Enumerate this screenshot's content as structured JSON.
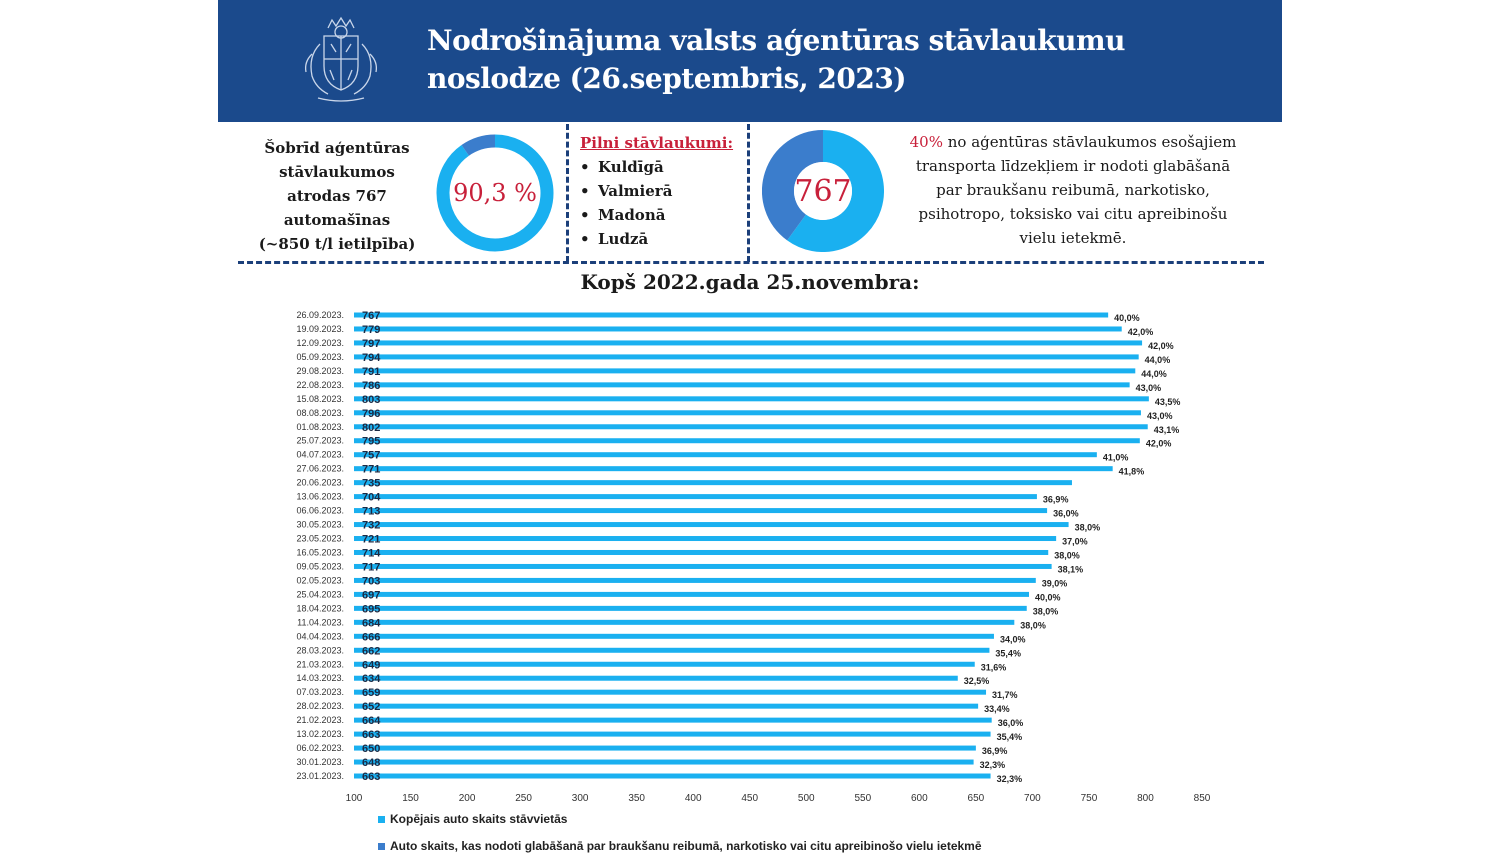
{
  "header": {
    "title_line1": "Nodrošinājuma valsts aģentūras stāvlaukumu",
    "title_line2": "noslodze (26.septembris, 2023)"
  },
  "colors": {
    "header_bg": "#1b4a8c",
    "accent_red": "#c8203a",
    "bar_light": "#1ab0f0",
    "bar_dark": "#3b7dcc"
  },
  "summary": {
    "lines": [
      "Šobrīd aģentūras",
      "stāvlaukumos",
      "atrodas 767",
      "automašīnas",
      "(~850 t/l ietilpība)"
    ],
    "occupancy_label": "90,3 %",
    "occupancy_fraction": 0.903
  },
  "full_lots": {
    "title": "Pilni stāvlaukumi:",
    "items": [
      "Kuldīgā",
      "Valmierā",
      "Madonā",
      "Ludzā"
    ]
  },
  "detained": {
    "count_label": "767",
    "share_fraction": 0.4,
    "pct": "40%",
    "text_lines": [
      " no aģentūras stāvlaukumos esošajiem",
      "transporta līdzekļiem ir nodoti glabāšanā",
      "par braukšanu reibumā, narkotisko,",
      "psihotropo, toksisko vai citu apreibinošu",
      "vielu ietekmē."
    ]
  },
  "chart_data": {
    "type": "bar",
    "orientation": "horizontal",
    "title": "Kopš 2022.gada 25.novembra:",
    "categories": [
      "26.09.2023.",
      "19.09.2023.",
      "12.09.2023.",
      "05.09.2023.",
      "29.08.2023.",
      "22.08.2023.",
      "15.08.2023.",
      "08.08.2023.",
      "01.08.2023.",
      "25.07.2023.",
      "04.07.2023.",
      "27.06.2023.",
      "20.06.2023.",
      "13.06.2023.",
      "06.06.2023.",
      "30.05.2023.",
      "23.05.2023.",
      "16.05.2023.",
      "09.05.2023.",
      "02.05.2023.",
      "25.04.2023.",
      "18.04.2023.",
      "11.04.2023.",
      "04.04.2023.",
      "28.03.2023.",
      "21.03.2023.",
      "14.03.2023.",
      "07.03.2023.",
      "28.02.2023.",
      "21.02.2023.",
      "13.02.2023.",
      "06.02.2023.",
      "30.01.2023.",
      "23.01.2023."
    ],
    "series": [
      {
        "name": "Kopējais auto skaits stāvvietās",
        "color": "#1ab0f0",
        "values": [
          767,
          779,
          797,
          794,
          791,
          786,
          803,
          796,
          802,
          795,
          757,
          771,
          735,
          704,
          713,
          732,
          721,
          714,
          717,
          703,
          697,
          695,
          684,
          666,
          662,
          649,
          634,
          659,
          652,
          664,
          663,
          650,
          648,
          663
        ]
      },
      {
        "name": "Auto skaits, kas nodoti glabāšanā par braukšanu reibumā, narkotisko vai citu apreibinošo vielu ietekmē",
        "color": "#3b7dcc",
        "share_labels": [
          "40,0%",
          "42,0%",
          "42,0%",
          "44,0%",
          "44,0%",
          "43,0%",
          "43,5%",
          "43,0%",
          "43,1%",
          "42,0%",
          "41,0%",
          "41,8%",
          "",
          "36,9%",
          "36,0%",
          "38,0%",
          "37,0%",
          "38,0%",
          "38,1%",
          "39,0%",
          "40,0%",
          "38,0%",
          "38,0%",
          "34,0%",
          "35,4%",
          "31,6%",
          "32,5%",
          "31,7%",
          "33,4%",
          "36,0%",
          "35,4%",
          "36,9%",
          "32,3%",
          "32,3%"
        ]
      }
    ],
    "xlim": [
      100,
      850
    ],
    "xticks": [
      100,
      150,
      200,
      250,
      300,
      350,
      400,
      450,
      500,
      550,
      600,
      650,
      700,
      750,
      800,
      850
    ],
    "legend": "bottom"
  }
}
